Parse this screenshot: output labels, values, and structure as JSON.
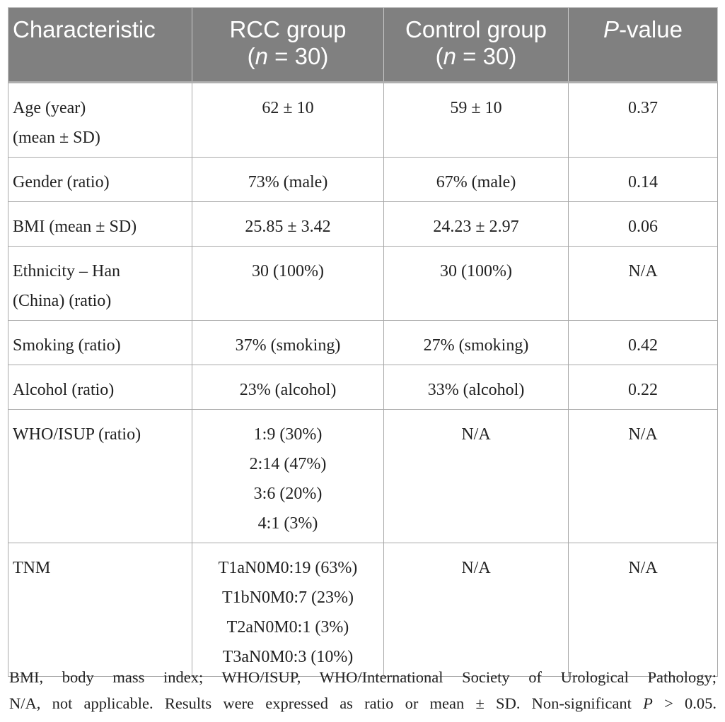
{
  "table": {
    "headers": {
      "characteristic": "Characteristic",
      "rcc_line1": "RCC group",
      "rcc_line2_pre": "(",
      "rcc_line2_n": "n",
      "rcc_line2_post": " = 30)",
      "control_line1": "Control group",
      "control_line2_pre": "(",
      "control_line2_n": "n",
      "control_line2_post": " = 30)",
      "pvalue_p": "P",
      "pvalue_rest": "-value"
    },
    "rows": [
      {
        "label_lines": [
          "Age (year)",
          "(mean ± SD)"
        ],
        "rcc_lines": [
          "62 ± 10"
        ],
        "control_lines": [
          "59 ± 10"
        ],
        "p": "0.37"
      },
      {
        "label_lines": [
          "Gender (ratio)"
        ],
        "rcc_lines": [
          "73% (male)"
        ],
        "control_lines": [
          "67% (male)"
        ],
        "p": "0.14"
      },
      {
        "label_lines": [
          "BMI (mean ± SD)"
        ],
        "rcc_lines": [
          "25.85 ± 3.42"
        ],
        "control_lines": [
          "24.23 ± 2.97"
        ],
        "p": "0.06"
      },
      {
        "label_lines": [
          "Ethnicity – Han",
          "(China) (ratio)"
        ],
        "rcc_lines": [
          "30 (100%)"
        ],
        "control_lines": [
          "30 (100%)"
        ],
        "p": "N/A"
      },
      {
        "label_lines": [
          "Smoking (ratio)"
        ],
        "rcc_lines": [
          "37% (smoking)"
        ],
        "control_lines": [
          "27% (smoking)"
        ],
        "p": "0.42"
      },
      {
        "label_lines": [
          "Alcohol (ratio)"
        ],
        "rcc_lines": [
          "23% (alcohol)"
        ],
        "control_lines": [
          "33% (alcohol)"
        ],
        "p": "0.22"
      },
      {
        "label_lines": [
          "WHO/ISUP (ratio)"
        ],
        "rcc_lines": [
          "1:9 (30%)",
          "2:14 (47%)",
          "3:6 (20%)",
          "4:1 (3%)"
        ],
        "control_lines": [
          "N/A"
        ],
        "p": "N/A"
      },
      {
        "label_lines": [
          "TNM"
        ],
        "rcc_lines": [
          "T1aN0M0:19 (63%)",
          "T1bN0M0:7 (23%)",
          "T2aN0M0:1 (3%)",
          "T3aN0M0:3 (10%)"
        ],
        "control_lines": [
          "N/A"
        ],
        "p": "N/A"
      }
    ]
  },
  "footnote": {
    "line1": "BMI, body mass index; WHO/ISUP, WHO/International Society of Urological Pathology;",
    "line2_pre": "N/A, not applicable. Results were expressed as ratio or mean ± SD. Non-significant ",
    "line2_p": "P",
    "line2_post": " > 0.05."
  }
}
